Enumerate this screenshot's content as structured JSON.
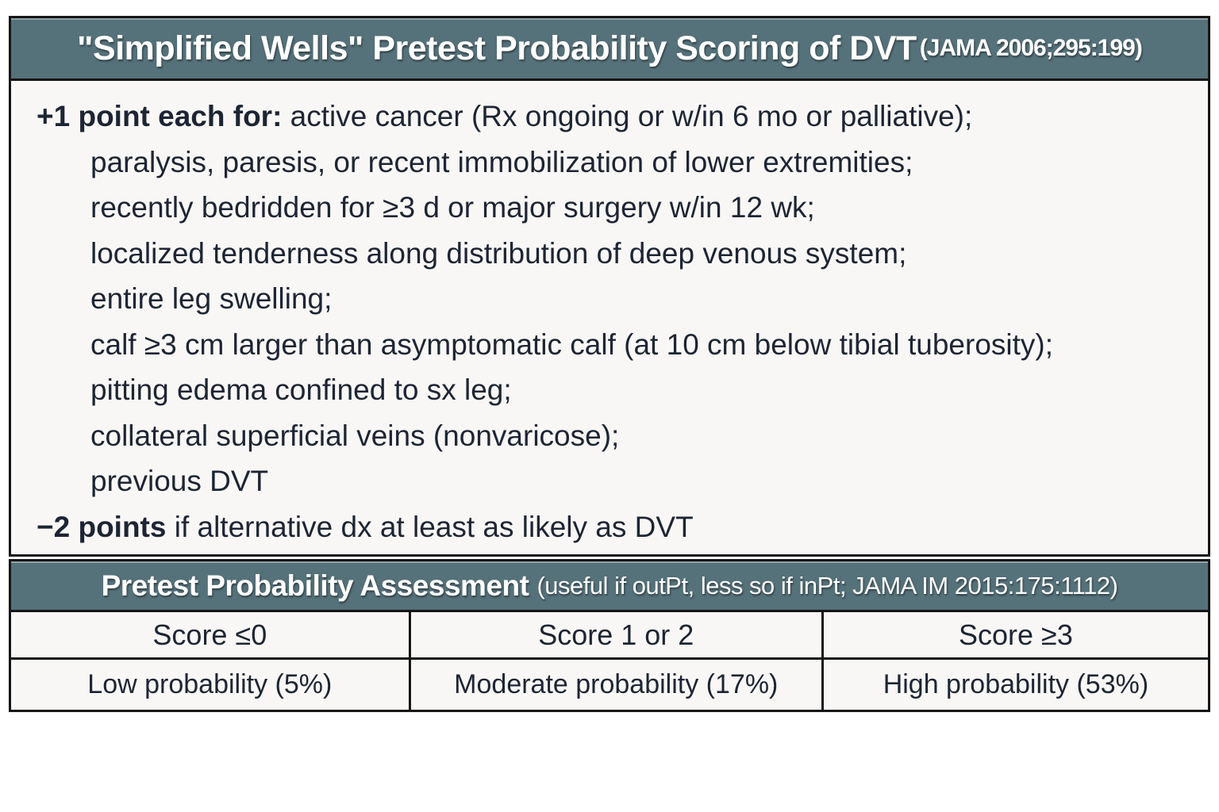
{
  "colors": {
    "header_bg": "#55717a",
    "header_text": "#ffffff",
    "body_bg": "#f8f7f5",
    "text": "#1d2534",
    "border": "#161616"
  },
  "scoring_section": {
    "title": "\"Simplified Wells\" Pretest Probability Scoring of DVT",
    "citation": "(JAMA 2006;295:199)",
    "plus_rule": {
      "prefix": "+1 point each for:",
      "first_item": " active cancer (Rx ongoing or w/in 6 mo or palliative);"
    },
    "criteria": [
      "paralysis, paresis, or recent immobilization of lower extremities;",
      "recently bedridden for ≥3 d or major surgery w/in 12 wk;",
      "localized tenderness along distribution of deep venous system;",
      "entire leg swelling;",
      "calf ≥3 cm larger than asymptomatic calf (at 10 cm below tibial tuberosity);",
      "pitting edema confined to sx leg;",
      "collateral superficial veins (nonvaricose);",
      "previous DVT"
    ],
    "minus_rule": {
      "prefix": "−2 points",
      "rest": " if alternative dx at least as likely as DVT"
    }
  },
  "assessment_section": {
    "title": "Pretest Probability Assessment",
    "citation": "(useful if outPt, less so if inPt; JAMA IM 2015:175:1112)",
    "table": {
      "headers": [
        "Score ≤0",
        "Score 1 or 2",
        "Score ≥3"
      ],
      "values": [
        "Low probability (5%)",
        "Moderate probability (17%)",
        "High probability (53%)"
      ]
    }
  }
}
